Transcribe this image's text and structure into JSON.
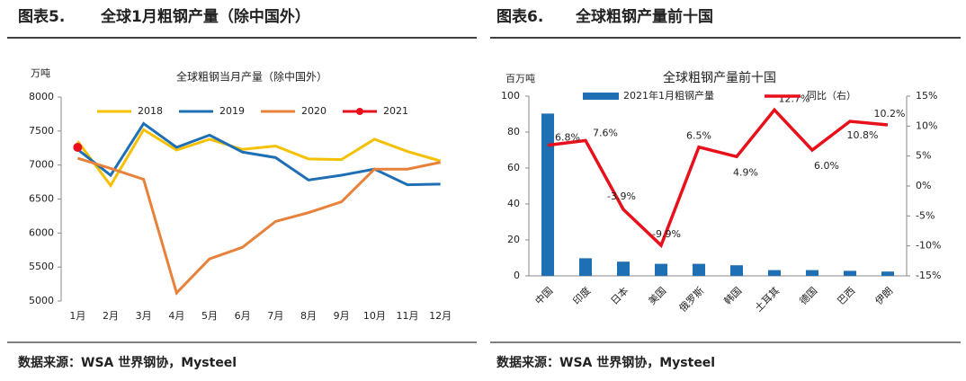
{
  "chart_data": [
    {
      "type": "line",
      "header_label": "图表5.",
      "header_title": "全球1月粗钢产量（除中国外）",
      "title": "全球粗钢当月产量（除中国外）",
      "y_label": "万吨",
      "categories": [
        "1月",
        "2月",
        "3月",
        "4月",
        "5月",
        "6月",
        "7月",
        "8月",
        "9月",
        "10月",
        "11月",
        "12月"
      ],
      "series": [
        {
          "name": "2018",
          "color": "#f5c000",
          "values": [
            7350,
            6700,
            7520,
            7220,
            7380,
            7230,
            7280,
            7090,
            7080,
            7380,
            7200,
            7060
          ]
        },
        {
          "name": "2019",
          "color": "#1f6fb4",
          "values": [
            7230,
            6850,
            7610,
            7260,
            7440,
            7190,
            7110,
            6780,
            6850,
            6940,
            6710,
            6720
          ]
        },
        {
          "name": "2020",
          "color": "#e8823a",
          "values": [
            7100,
            6950,
            6790,
            5120,
            5620,
            5790,
            6170,
            6300,
            6460,
            6940,
            6940,
            7040
          ]
        },
        {
          "name": "2021",
          "color": "#e8101a",
          "marker": true,
          "values": [
            7260,
            null,
            null,
            null,
            null,
            null,
            null,
            null,
            null,
            null,
            null,
            null
          ]
        }
      ],
      "ylim": [
        5000,
        8000
      ],
      "yticks": [
        5000,
        5500,
        6000,
        6500,
        7000,
        7500,
        8000
      ],
      "grid": false,
      "source": "数据来源：WSA 世界钢协，Mysteel"
    },
    {
      "type": "bar_line",
      "header_label": "图表6.",
      "header_title": "全球粗钢产量前十国",
      "title": "全球粗钢产量前十国",
      "y_label": "百万吨",
      "categories": [
        "中国",
        "印度",
        "日本",
        "美国",
        "俄罗斯",
        "韩国",
        "土耳其",
        "德国",
        "巴西",
        "伊朗"
      ],
      "series": [
        {
          "name": "2021年1月粗钢产量",
          "color": "#1f6fb4",
          "values": [
            90.3,
            9.8,
            7.9,
            6.7,
            6.7,
            5.9,
            3.2,
            3.2,
            2.8,
            2.4
          ]
        },
        {
          "name": "同比（右）",
          "color": "#e8101a",
          "axis": "y2",
          "values": [
            6.8,
            7.6,
            -3.9,
            -9.9,
            6.5,
            4.9,
            12.7,
            6.0,
            10.8,
            10.2
          ],
          "value_labels": [
            "6.8%",
            "7.6%",
            "-3.9%",
            "-9.9%",
            "6.5%",
            "4.9%",
            "12.7%",
            "6.0%",
            "10.8%",
            "10.2%"
          ]
        }
      ],
      "ylim": [
        0,
        100
      ],
      "yticks": [
        0,
        20,
        40,
        60,
        80,
        100
      ],
      "y2lim": [
        -15,
        15
      ],
      "y2ticks": [
        {
          "value": -15,
          "label": "-15%"
        },
        {
          "value": -10,
          "label": "-10%"
        },
        {
          "value": -5,
          "label": "-5%"
        },
        {
          "value": 0,
          "label": "0%"
        },
        {
          "value": 5,
          "label": "5%"
        },
        {
          "value": 10,
          "label": "10%"
        },
        {
          "value": 15,
          "label": "15%"
        }
      ],
      "grid": false,
      "source": "数据来源：WSA 世界钢协，Mysteel"
    }
  ]
}
